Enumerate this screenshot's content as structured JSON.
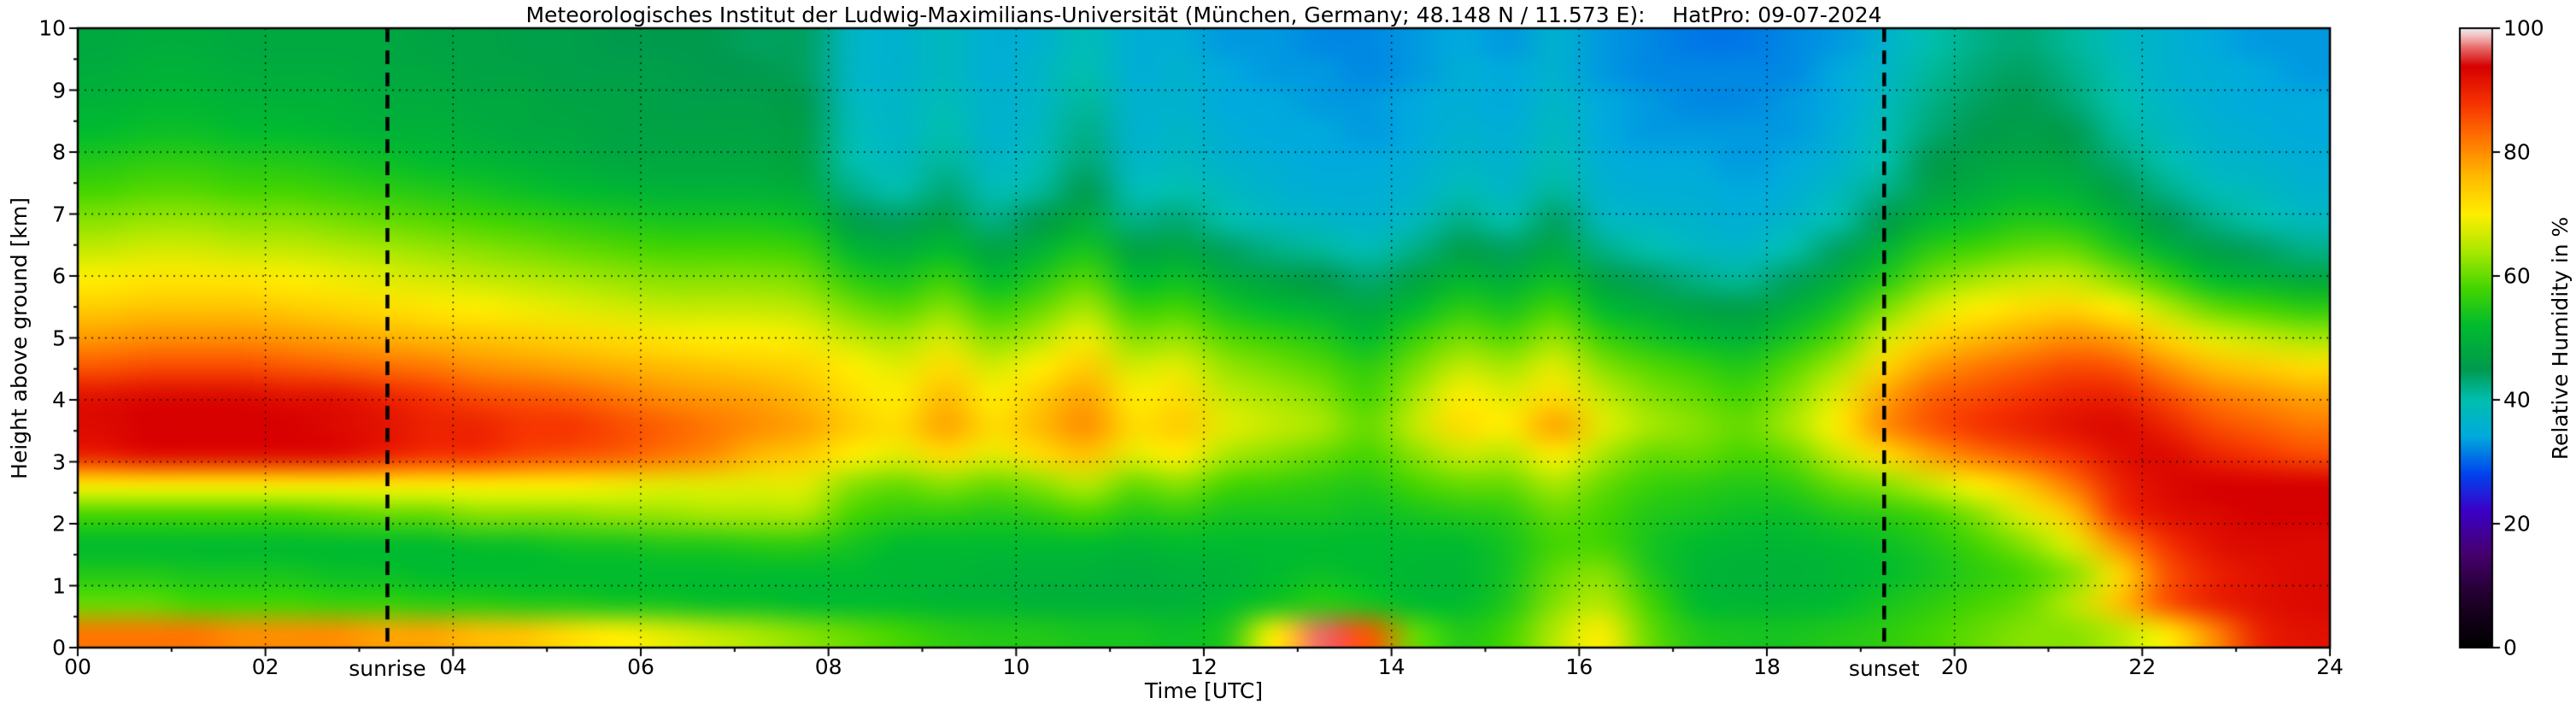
{
  "title": "Meteorologisches Institut der Ludwig-Maximilians-Universität (München, Germany; 48.148 N / 11.573 E):    HatPro: 09-07-2024",
  "axes": {
    "x": {
      "label": "Time [UTC]",
      "min": 0,
      "max": 24,
      "major_ticks": [
        0,
        2,
        4,
        6,
        8,
        10,
        12,
        14,
        16,
        18,
        20,
        22,
        24
      ],
      "tick_labels": [
        "00",
        "02",
        "04",
        "06",
        "08",
        "10",
        "12",
        "14",
        "16",
        "18",
        "20",
        "22",
        "24"
      ]
    },
    "y": {
      "label": "Height above ground [km]",
      "min": 0,
      "max": 10,
      "major_ticks": [
        0,
        1,
        2,
        3,
        4,
        5,
        6,
        7,
        8,
        9,
        10
      ],
      "tick_labels": [
        "0",
        "1",
        "2",
        "3",
        "4",
        "5",
        "6",
        "7",
        "8",
        "9",
        "10"
      ]
    }
  },
  "colorbar": {
    "label": "Relative Humidity in %",
    "min": 0,
    "max": 100,
    "ticks": [
      0,
      20,
      40,
      60,
      80,
      100
    ],
    "tick_labels": [
      "0",
      "20",
      "40",
      "60",
      "80",
      "100"
    ],
    "colormap": [
      {
        "v": 0,
        "c": "#000000"
      },
      {
        "v": 8,
        "c": "#20002c"
      },
      {
        "v": 15,
        "c": "#46006e"
      },
      {
        "v": 22,
        "c": "#3b00c8"
      },
      {
        "v": 28,
        "c": "#0044ee"
      },
      {
        "v": 34,
        "c": "#00aadd"
      },
      {
        "v": 40,
        "c": "#00bfae"
      },
      {
        "v": 45,
        "c": "#009a4d"
      },
      {
        "v": 52,
        "c": "#00bb2f"
      },
      {
        "v": 58,
        "c": "#44d500"
      },
      {
        "v": 64,
        "c": "#a8e800"
      },
      {
        "v": 70,
        "c": "#ffee00"
      },
      {
        "v": 76,
        "c": "#ffbb00"
      },
      {
        "v": 82,
        "c": "#ff7700"
      },
      {
        "v": 88,
        "c": "#f63300"
      },
      {
        "v": 94,
        "c": "#d60000"
      },
      {
        "v": 97,
        "c": "#e86a6a"
      },
      {
        "v": 99,
        "c": "#f4c2c2"
      },
      {
        "v": 100,
        "c": "#e8e8e8"
      }
    ]
  },
  "annotations": {
    "sunrise": {
      "label": "sunrise",
      "time_utc": 3.3
    },
    "sunset": {
      "label": "sunset",
      "time_utc": 19.25
    }
  },
  "chart_data": {
    "type": "heatmap",
    "xlabel": "Time [UTC]",
    "ylabel": "Height above ground [km]",
    "value_unit": "% relative humidity",
    "x_hours": [
      0,
      0.5,
      1,
      1.5,
      2,
      2.5,
      3,
      3.5,
      4,
      4.5,
      5,
      5.5,
      6,
      6.5,
      7,
      7.5,
      8,
      8.5,
      9,
      9.5,
      10,
      10.5,
      11,
      11.5,
      12,
      12.5,
      13,
      13.5,
      14,
      14.5,
      15,
      15.5,
      16,
      16.5,
      17,
      17.5,
      18,
      18.5,
      19,
      19.5,
      20,
      20.5,
      21,
      21.5,
      22,
      22.5,
      23,
      23.5
    ],
    "y_km": [
      0,
      0.5,
      1,
      1.5,
      2,
      2.5,
      3,
      3.5,
      4,
      4.5,
      5,
      5.5,
      6,
      6.5,
      7,
      7.5,
      8,
      8.5,
      9,
      9.5,
      10
    ],
    "values_by_height": [
      [
        82,
        82,
        82,
        80,
        80,
        80,
        78,
        78,
        76,
        75,
        72,
        70,
        68,
        66,
        64,
        62,
        60,
        58,
        56,
        55,
        55,
        54,
        54,
        53,
        55,
        70,
        97,
        85,
        60,
        55,
        58,
        65,
        70,
        60,
        55,
        54,
        54,
        55,
        56,
        58,
        60,
        62,
        62,
        65,
        70,
        80,
        90,
        92
      ],
      [
        60,
        60,
        58,
        58,
        58,
        57,
        57,
        56,
        56,
        55,
        55,
        54,
        54,
        53,
        53,
        52,
        52,
        52,
        51,
        51,
        50,
        50,
        50,
        50,
        52,
        54,
        56,
        54,
        52,
        52,
        55,
        62,
        65,
        58,
        52,
        51,
        51,
        52,
        54,
        56,
        58,
        60,
        65,
        75,
        85,
        90,
        92,
        93
      ],
      [
        55,
        55,
        54,
        54,
        54,
        53,
        53,
        52,
        52,
        52,
        52,
        52,
        52,
        52,
        52,
        52,
        52,
        51,
        51,
        50,
        50,
        50,
        49,
        50,
        50,
        52,
        53,
        52,
        51,
        51,
        54,
        60,
        62,
        55,
        51,
        50,
        50,
        51,
        52,
        54,
        56,
        58,
        62,
        72,
        85,
        90,
        92,
        93
      ],
      [
        52,
        52,
        52,
        52,
        52,
        52,
        52,
        52,
        53,
        53,
        54,
        54,
        55,
        55,
        56,
        56,
        54,
        52,
        52,
        52,
        52,
        52,
        51,
        52,
        52,
        52,
        52,
        52,
        52,
        52,
        54,
        58,
        58,
        54,
        52,
        51,
        51,
        52,
        53,
        55,
        58,
        62,
        68,
        80,
        88,
        92,
        93,
        93
      ],
      [
        58,
        58,
        58,
        58,
        58,
        59,
        60,
        60,
        62,
        62,
        62,
        63,
        63,
        64,
        64,
        64,
        58,
        56,
        56,
        55,
        56,
        58,
        55,
        56,
        54,
        54,
        54,
        53,
        54,
        55,
        56,
        60,
        58,
        55,
        54,
        53,
        53,
        55,
        56,
        58,
        62,
        68,
        75,
        88,
        92,
        93,
        94,
        94
      ],
      [
        70,
        70,
        70,
        70,
        70,
        70,
        70,
        70,
        70,
        70,
        70,
        69,
        68,
        68,
        68,
        68,
        62,
        60,
        62,
        60,
        62,
        65,
        60,
        62,
        58,
        57,
        56,
        55,
        58,
        60,
        60,
        64,
        60,
        57,
        56,
        55,
        56,
        60,
        62,
        66,
        70,
        75,
        82,
        90,
        93,
        94,
        94,
        94
      ],
      [
        90,
        92,
        92,
        92,
        92,
        92,
        90,
        88,
        88,
        86,
        85,
        84,
        82,
        80,
        76,
        74,
        70,
        68,
        72,
        68,
        72,
        75,
        68,
        70,
        64,
        62,
        60,
        58,
        62,
        66,
        65,
        70,
        64,
        60,
        60,
        58,
        60,
        66,
        72,
        78,
        82,
        85,
        88,
        92,
        93,
        90,
        88,
        86
      ],
      [
        93,
        94,
        94,
        94,
        94,
        93,
        92,
        90,
        90,
        88,
        88,
        86,
        84,
        82,
        80,
        78,
        74,
        72,
        78,
        72,
        76,
        80,
        72,
        74,
        68,
        66,
        64,
        60,
        66,
        72,
        70,
        78,
        68,
        64,
        62,
        60,
        64,
        70,
        80,
        85,
        88,
        90,
        92,
        93,
        90,
        86,
        84,
        82
      ],
      [
        92,
        93,
        93,
        93,
        92,
        92,
        90,
        88,
        86,
        85,
        84,
        82,
        80,
        79,
        78,
        76,
        72,
        70,
        76,
        70,
        74,
        78,
        70,
        72,
        66,
        64,
        62,
        58,
        64,
        70,
        68,
        72,
        66,
        62,
        60,
        58,
        62,
        68,
        78,
        84,
        86,
        88,
        90,
        90,
        86,
        82,
        80,
        78
      ],
      [
        85,
        86,
        86,
        86,
        85,
        84,
        83,
        82,
        80,
        79,
        78,
        77,
        76,
        75,
        74,
        73,
        70,
        68,
        72,
        67,
        70,
        74,
        67,
        68,
        63,
        61,
        59,
        56,
        61,
        66,
        64,
        68,
        62,
        59,
        57,
        55,
        59,
        64,
        73,
        79,
        82,
        84,
        86,
        85,
        80,
        76,
        74,
        72
      ],
      [
        79,
        80,
        80,
        80,
        79,
        78,
        77,
        76,
        75,
        74,
        73,
        72,
        71,
        70,
        70,
        69,
        66,
        64,
        67,
        62,
        65,
        69,
        62,
        63,
        59,
        57,
        55,
        52,
        57,
        61,
        59,
        63,
        57,
        54,
        52,
        50,
        54,
        59,
        67,
        73,
        76,
        78,
        80,
        78,
        73,
        68,
        66,
        64
      ],
      [
        74,
        75,
        75,
        75,
        74,
        73,
        72,
        71,
        70,
        69,
        68,
        67,
        66,
        66,
        66,
        65,
        61,
        59,
        62,
        57,
        60,
        64,
        57,
        58,
        54,
        52,
        50,
        48,
        52,
        56,
        54,
        58,
        52,
        49,
        47,
        46,
        49,
        54,
        61,
        67,
        70,
        72,
        73,
        70,
        65,
        60,
        58,
        56
      ],
      [
        70,
        71,
        71,
        71,
        70,
        69,
        68,
        67,
        66,
        65,
        64,
        63,
        62,
        62,
        62,
        61,
        56,
        54,
        57,
        52,
        55,
        59,
        52,
        53,
        49,
        47,
        45,
        43,
        47,
        51,
        49,
        53,
        47,
        44,
        42,
        41,
        44,
        49,
        55,
        61,
        64,
        66,
        66,
        62,
        57,
        52,
        50,
        48
      ],
      [
        66,
        67,
        67,
        66,
        66,
        65,
        64,
        63,
        62,
        61,
        60,
        59,
        58,
        58,
        58,
        57,
        51,
        49,
        52,
        47,
        50,
        54,
        47,
        48,
        44,
        42,
        41,
        39,
        42,
        46,
        44,
        48,
        42,
        40,
        38,
        37,
        40,
        44,
        50,
        56,
        58,
        60,
        60,
        55,
        50,
        46,
        44,
        42
      ],
      [
        62,
        63,
        63,
        62,
        62,
        61,
        60,
        59,
        58,
        57,
        56,
        55,
        54,
        54,
        54,
        53,
        46,
        44,
        47,
        42,
        45,
        49,
        42,
        43,
        40,
        38,
        37,
        36,
        38,
        42,
        40,
        44,
        38,
        37,
        36,
        35,
        37,
        40,
        45,
        51,
        53,
        55,
        54,
        50,
        45,
        42,
        40,
        38
      ],
      [
        58,
        59,
        59,
        58,
        58,
        57,
        56,
        55,
        54,
        53,
        52,
        51,
        50,
        50,
        50,
        49,
        42,
        40,
        43,
        39,
        41,
        45,
        39,
        40,
        38,
        36,
        35,
        35,
        36,
        39,
        37,
        41,
        36,
        35,
        35,
        34,
        35,
        38,
        42,
        47,
        49,
        51,
        50,
        46,
        42,
        39,
        38,
        36
      ],
      [
        55,
        56,
        56,
        55,
        55,
        54,
        53,
        52,
        51,
        50,
        49,
        48,
        48,
        48,
        48,
        47,
        40,
        38,
        41,
        37,
        39,
        43,
        37,
        38,
        36,
        35,
        34,
        34,
        35,
        37,
        36,
        39,
        35,
        34,
        34,
        33,
        34,
        36,
        40,
        45,
        47,
        48,
        47,
        43,
        40,
        37,
        36,
        35
      ],
      [
        52,
        53,
        53,
        52,
        52,
        51,
        50,
        50,
        49,
        48,
        48,
        47,
        47,
        47,
        47,
        46,
        39,
        37,
        40,
        36,
        38,
        42,
        36,
        37,
        35,
        34,
        34,
        33,
        34,
        36,
        35,
        38,
        34,
        33,
        33,
        33,
        33,
        35,
        39,
        43,
        45,
        46,
        45,
        41,
        38,
        36,
        35,
        34
      ],
      [
        50,
        51,
        51,
        50,
        50,
        50,
        49,
        49,
        48,
        48,
        47,
        47,
        46,
        46,
        46,
        45,
        38,
        37,
        39,
        36,
        37,
        41,
        36,
        36,
        34,
        34,
        33,
        33,
        34,
        35,
        34,
        37,
        34,
        33,
        32,
        32,
        33,
        34,
        38,
        42,
        44,
        45,
        43,
        40,
        37,
        35,
        34,
        34
      ],
      [
        49,
        50,
        50,
        49,
        49,
        49,
        48,
        48,
        47,
        47,
        46,
        46,
        46,
        45,
        45,
        44,
        37,
        36,
        38,
        35,
        37,
        40,
        35,
        36,
        34,
        33,
        33,
        32,
        33,
        35,
        34,
        36,
        33,
        32,
        32,
        32,
        32,
        34,
        37,
        41,
        43,
        44,
        42,
        39,
        36,
        35,
        34,
        33
      ],
      [
        48,
        49,
        49,
        48,
        48,
        48,
        48,
        47,
        47,
        46,
        46,
        45,
        45,
        45,
        44,
        44,
        37,
        36,
        38,
        35,
        36,
        39,
        35,
        35,
        33,
        33,
        32,
        32,
        33,
        34,
        33,
        36,
        33,
        32,
        31,
        31,
        32,
        33,
        36,
        40,
        42,
        43,
        41,
        38,
        36,
        34,
        33,
        33
      ]
    ]
  }
}
